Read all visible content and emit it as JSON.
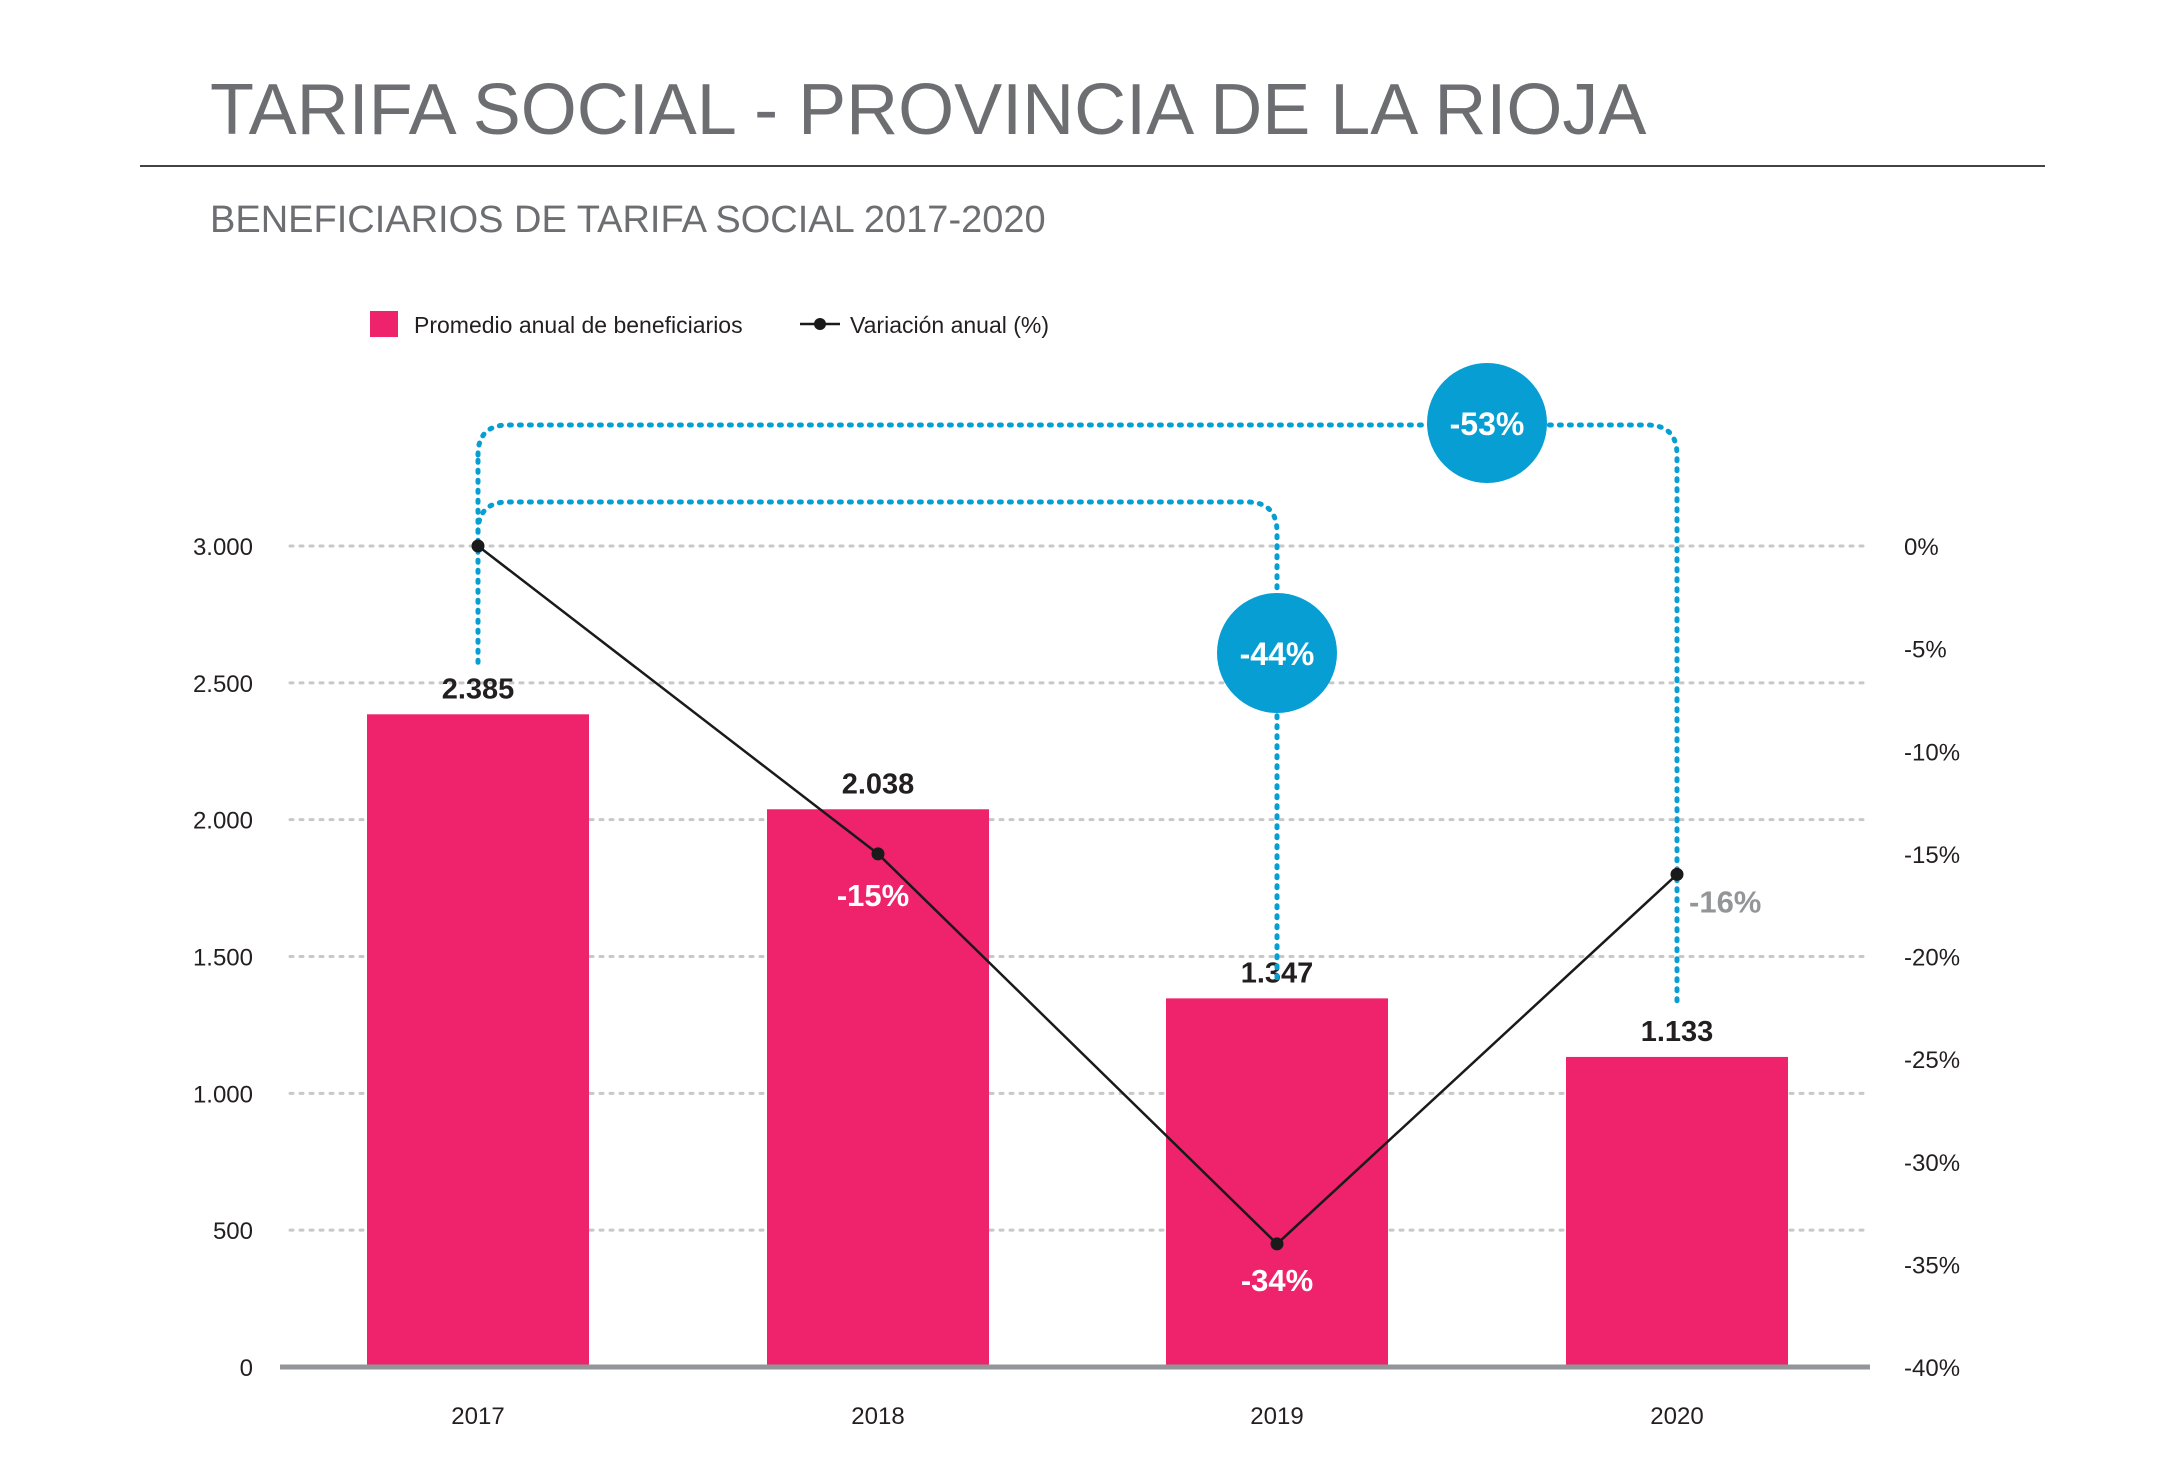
{
  "header": {
    "title": "TARIFA SOCIAL - PROVINCIA DE LA RIOJA",
    "subtitle": "BENEFICIARIOS DE TARIFA SOCIAL 2017-2020"
  },
  "colors": {
    "bar": "#ef236b",
    "line": "#1a1a1a",
    "accent": "#079fd3",
    "title": "#6d6e71",
    "grid": "#c8c8c8",
    "axis": "#939598",
    "muted_label": "#939598"
  },
  "chart_data": {
    "type": "bar",
    "categories": [
      "2017",
      "2018",
      "2019",
      "2020"
    ],
    "series": [
      {
        "name": "Promedio anual de beneficiarios",
        "type": "bar",
        "axis": "left",
        "values": [
          2385,
          2038,
          1347,
          1133
        ],
        "labels": [
          "2.385",
          "2.038",
          "1.347",
          "1.133"
        ]
      },
      {
        "name": "Variación anual (%)",
        "type": "line",
        "axis": "right",
        "values": [
          0,
          -15,
          -34,
          -16
        ],
        "labels": [
          "",
          "-15%",
          "-34%",
          "-16%"
        ]
      }
    ],
    "left_axis": {
      "ylim": [
        0,
        3000
      ],
      "ticks": [
        0,
        500,
        1000,
        1500,
        2000,
        2500,
        3000
      ],
      "tick_labels": [
        "0",
        "500",
        "1.000",
        "1.500",
        "2.000",
        "2.500",
        "3.000"
      ]
    },
    "right_axis": {
      "ylim": [
        -40,
        0
      ],
      "ticks": [
        0,
        -5,
        -10,
        -15,
        -20,
        -25,
        -30,
        -35,
        -40
      ],
      "tick_labels": [
        "0%",
        "-5%",
        "-10%",
        "-15%",
        "-20%",
        "-25%",
        "-30%",
        "-35%",
        "-40%"
      ]
    },
    "grid": true,
    "legend_position": "top-left",
    "comparisons": [
      {
        "from": "2017",
        "to": "2019",
        "label": "-44%"
      },
      {
        "from": "2017",
        "to": "2020",
        "label": "-53%"
      }
    ]
  }
}
